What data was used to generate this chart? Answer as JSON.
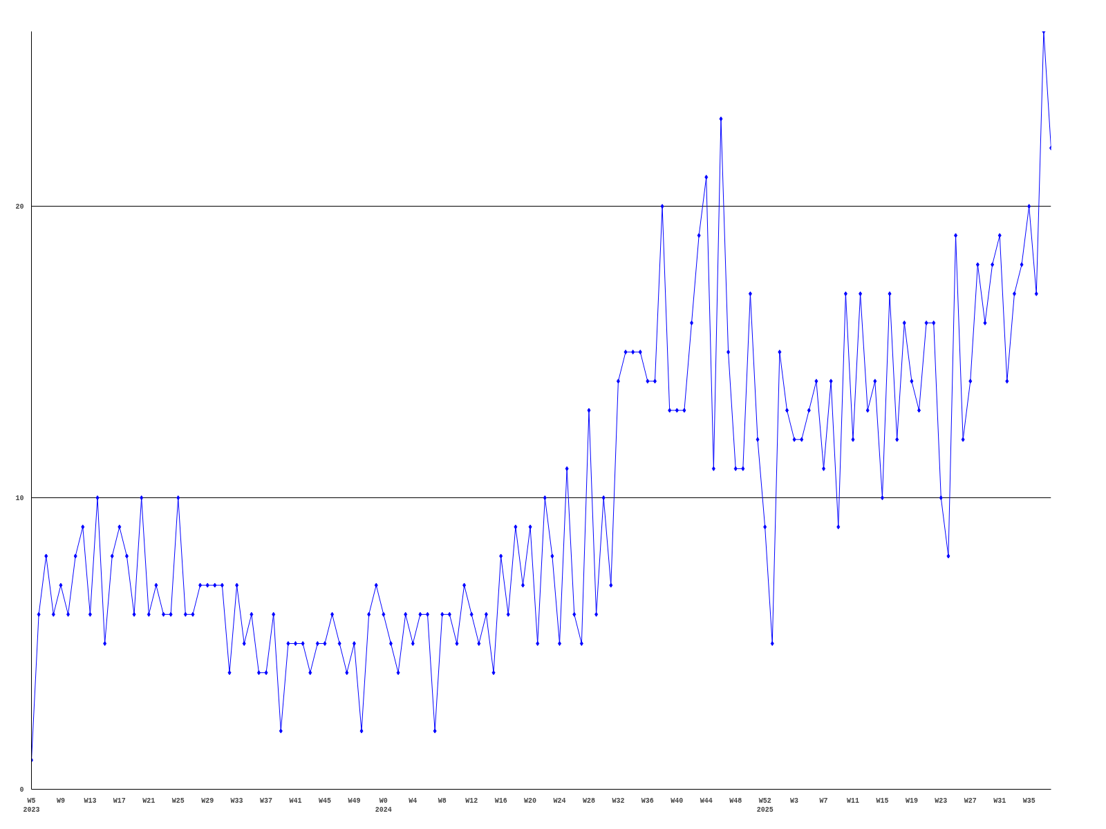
{
  "chart_data": {
    "type": "line",
    "categories": [
      "W5\n2023",
      null,
      null,
      null,
      "W9",
      null,
      null,
      null,
      "W13",
      null,
      null,
      null,
      "W17",
      null,
      null,
      null,
      "W21",
      null,
      null,
      null,
      "W25",
      null,
      null,
      null,
      "W29",
      null,
      null,
      null,
      "W33",
      null,
      null,
      null,
      "W37",
      null,
      null,
      null,
      "W41",
      null,
      null,
      null,
      "W45",
      null,
      null,
      null,
      "W49",
      null,
      null,
      null,
      "W0\n2024",
      null,
      null,
      null,
      "W4",
      null,
      null,
      null,
      "W8",
      null,
      null,
      null,
      "W12",
      null,
      null,
      null,
      "W16",
      null,
      null,
      null,
      "W20",
      null,
      null,
      null,
      "W24",
      null,
      null,
      null,
      "W28",
      null,
      null,
      null,
      "W32",
      null,
      null,
      null,
      "W36",
      null,
      null,
      null,
      "W40",
      null,
      null,
      null,
      "W44",
      null,
      null,
      null,
      "W48",
      null,
      null,
      null,
      "W52\n2025",
      null,
      null,
      null,
      "W3",
      null,
      null,
      null,
      "W7",
      null,
      null,
      null,
      "W11",
      null,
      null,
      null,
      "W15",
      null,
      null,
      null,
      "W19",
      null,
      null,
      null,
      "W23",
      null,
      null,
      null,
      "W27",
      null,
      null,
      null,
      "W31",
      null,
      null,
      null,
      "W35",
      null,
      null,
      null
    ],
    "series": [
      {
        "color": "#0000ff",
        "values": [
          1,
          6,
          8,
          6,
          7,
          6,
          8,
          9,
          6,
          10,
          5,
          8,
          9,
          8,
          6,
          10,
          6,
          7,
          6,
          6,
          10,
          6,
          6,
          7,
          7,
          7,
          7,
          4,
          7,
          5,
          6,
          4,
          4,
          6,
          2,
          5,
          5,
          5,
          4,
          5,
          5,
          6,
          5,
          4,
          5,
          2,
          6,
          7,
          6,
          5,
          4,
          6,
          5,
          6,
          6,
          2,
          6,
          6,
          5,
          7,
          6,
          5,
          6,
          4,
          8,
          6,
          9,
          7,
          9,
          5,
          10,
          8,
          5,
          11,
          6,
          5,
          13,
          6,
          10,
          7,
          14,
          15,
          15,
          15,
          14,
          14,
          20,
          13,
          13,
          13,
          16,
          19,
          21,
          11,
          23,
          15,
          11,
          11,
          17,
          12,
          9,
          5,
          15,
          13,
          12,
          12,
          13,
          14,
          11,
          14,
          9,
          17,
          12,
          17,
          13,
          14,
          10,
          17,
          12,
          16,
          14,
          13,
          16,
          16,
          10,
          8,
          19,
          12,
          14,
          18,
          16,
          18,
          19,
          14,
          17,
          18,
          20,
          17,
          26,
          22
        ]
      }
    ],
    "ylim": [
      0,
      26
    ],
    "yticks": [
      0,
      10,
      20
    ],
    "grid": "y",
    "marker": "diamond",
    "line_style": "solid"
  }
}
